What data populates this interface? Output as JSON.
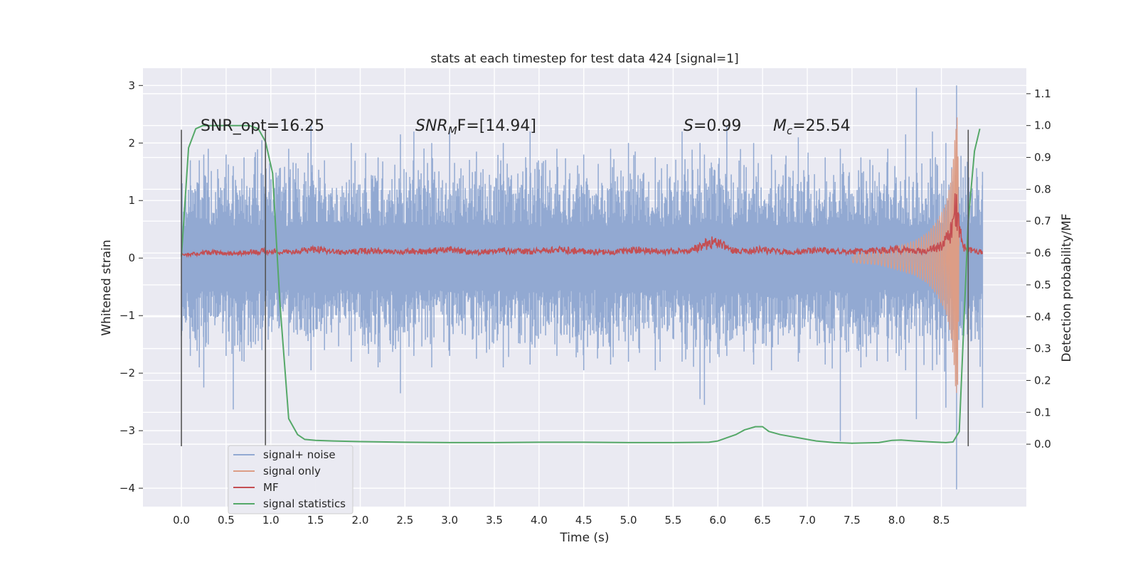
{
  "chart_data": {
    "type": "line",
    "title": "stats at each timestep for test data 424 [signal=1]",
    "xlabel": "Time (s)",
    "ylabel": "Whitened strain",
    "y2label": "Detection probability/MF",
    "xlim": [
      -0.43,
      9.45
    ],
    "ylim": [
      -4.32,
      3.3
    ],
    "y2lim": [
      -0.196,
      1.18
    ],
    "xticks": [
      "0.0",
      "0.5",
      "1.0",
      "1.5",
      "2.0",
      "2.5",
      "3.0",
      "3.5",
      "4.0",
      "4.5",
      "5.0",
      "5.5",
      "6.0",
      "6.5",
      "7.0",
      "7.5",
      "8.0",
      "8.5"
    ],
    "xtick_values": [
      0.0,
      0.5,
      1.0,
      1.5,
      2.0,
      2.5,
      3.0,
      3.5,
      4.0,
      4.5,
      5.0,
      5.5,
      6.0,
      6.5,
      7.0,
      7.5,
      8.0,
      8.5
    ],
    "yticks": [
      "3",
      "2",
      "1",
      "0",
      "−1",
      "−2",
      "−3",
      "−4"
    ],
    "ytick_values": [
      3,
      2,
      1,
      0,
      -1,
      -2,
      -3,
      -4
    ],
    "y2ticks": [
      "1.1",
      "1.0",
      "0.9",
      "0.8",
      "0.7",
      "0.6",
      "0.5",
      "0.4",
      "0.3",
      "0.2",
      "0.1",
      "0.0"
    ],
    "y2tick_values": [
      1.1,
      1.0,
      0.9,
      0.8,
      0.7,
      0.6,
      0.5,
      0.4,
      0.3,
      0.2,
      0.1,
      0.0
    ],
    "annotations": {
      "snr_opt": "SNR_opt=16.25",
      "snr_mf_a": "SNR",
      "snr_mf_sub": "M",
      "snr_mf_b": "F=[14.94]",
      "s_a": "S",
      "s_b": "=0.99",
      "mc_a": "M",
      "mc_sub": "c",
      "mc_b": "=25.54"
    },
    "vlines": [
      {
        "x": 0.0,
        "ymin": -3.27,
        "ymax": 2.23
      },
      {
        "x": 0.94,
        "ymin": -3.27,
        "ymax": 2.23
      },
      {
        "x": 8.8,
        "ymin": -3.27,
        "ymax": 2.23
      }
    ],
    "series": [
      {
        "name": "signal+ noise",
        "color": "#92a9d2",
        "axis": "left",
        "x": [
          0.0,
          0.1,
          0.2,
          0.25,
          0.3,
          0.5,
          0.58,
          0.7,
          0.9,
          1.2,
          1.45,
          1.6,
          1.9,
          2.2,
          2.45,
          2.6,
          2.8,
          3.0,
          3.3,
          3.6,
          3.9,
          4.2,
          4.5,
          4.8,
          5.0,
          5.3,
          5.6,
          5.8,
          5.85,
          6.1,
          6.4,
          6.6,
          6.9,
          7.2,
          7.37,
          7.6,
          7.9,
          8.1,
          8.22,
          8.4,
          8.55,
          8.67,
          8.8,
          8.96
        ],
        "low": [
          -1.35,
          -1.7,
          -1.9,
          -2.25,
          -1.5,
          -1.7,
          -2.63,
          -1.8,
          -1.6,
          -1.7,
          -1.95,
          -1.6,
          -1.8,
          -1.9,
          -2.35,
          -1.7,
          -1.9,
          -1.7,
          -1.75,
          -1.9,
          -1.85,
          -1.7,
          -1.95,
          -1.85,
          -1.8,
          -1.95,
          -1.8,
          -2.45,
          -2.55,
          -1.7,
          -1.85,
          -1.95,
          -1.8,
          -1.85,
          -3.18,
          -1.9,
          -1.8,
          -1.95,
          -2.8,
          -1.95,
          -2.6,
          -4.02,
          -1.8,
          -2.6
        ],
        "high": [
          1.45,
          1.7,
          1.7,
          1.8,
          1.9,
          1.8,
          1.6,
          1.75,
          2.05,
          1.9,
          2.3,
          1.7,
          2.0,
          1.75,
          2.15,
          2.2,
          2.0,
          2.2,
          1.85,
          2.0,
          2.2,
          1.9,
          1.8,
          1.9,
          2.0,
          1.75,
          2.2,
          2.0,
          1.8,
          2.3,
          2.0,
          1.8,
          2.1,
          1.75,
          1.9,
          1.75,
          1.9,
          2.15,
          2.96,
          2.2,
          2.0,
          3.0,
          2.1,
          1.5
        ]
      },
      {
        "name": "signal only",
        "color": "#dc9d86",
        "axis": "left",
        "x": [
          7.5,
          7.8,
          8.0,
          8.2,
          8.35,
          8.45,
          8.55,
          8.6,
          8.63,
          8.66,
          8.68,
          8.7
        ],
        "amp": [
          0.08,
          0.12,
          0.2,
          0.3,
          0.45,
          0.65,
          0.95,
          1.3,
          1.7,
          2.3,
          2.55,
          0.3
        ]
      },
      {
        "name": "MF",
        "color": "#c44e52",
        "axis": "left",
        "x": [
          0.0,
          0.3,
          0.6,
          0.9,
          1.2,
          1.5,
          1.8,
          2.1,
          2.4,
          2.7,
          3.0,
          3.3,
          3.6,
          3.9,
          4.2,
          4.5,
          4.8,
          5.1,
          5.4,
          5.7,
          5.93,
          6.2,
          6.5,
          6.8,
          7.1,
          7.4,
          7.7,
          8.0,
          8.3,
          8.5,
          8.6,
          8.66,
          8.7,
          8.75,
          8.85,
          8.96
        ],
        "y": [
          0.05,
          0.1,
          0.08,
          0.12,
          0.1,
          0.15,
          0.09,
          0.13,
          0.1,
          0.12,
          0.14,
          0.1,
          0.13,
          0.11,
          0.15,
          0.12,
          0.1,
          0.14,
          0.11,
          0.13,
          0.28,
          0.12,
          0.14,
          0.1,
          0.13,
          0.11,
          0.12,
          0.15,
          0.12,
          0.2,
          0.4,
          0.95,
          0.45,
          0.2,
          0.12,
          0.1
        ]
      },
      {
        "name": "signal statistics",
        "color": "#55a868",
        "axis": "right",
        "x": [
          0.0,
          0.08,
          0.16,
          0.24,
          0.4,
          0.6,
          0.76,
          0.86,
          0.94,
          1.02,
          1.1,
          1.2,
          1.3,
          1.38,
          1.5,
          1.7,
          2.0,
          2.5,
          3.0,
          3.5,
          4.0,
          4.5,
          5.0,
          5.5,
          5.9,
          6.0,
          6.1,
          6.2,
          6.3,
          6.42,
          6.5,
          6.57,
          6.7,
          6.9,
          7.1,
          7.3,
          7.5,
          7.8,
          7.95,
          8.05,
          8.2,
          8.4,
          8.55,
          8.63,
          8.7,
          8.8,
          8.87,
          8.93
        ],
        "y": [
          0.59,
          0.93,
          0.99,
          1.0,
          1.0,
          1.0,
          1.0,
          0.99,
          0.95,
          0.85,
          0.45,
          0.08,
          0.03,
          0.015,
          0.012,
          0.01,
          0.008,
          0.006,
          0.005,
          0.005,
          0.006,
          0.006,
          0.005,
          0.005,
          0.006,
          0.01,
          0.02,
          0.03,
          0.045,
          0.055,
          0.055,
          0.04,
          0.03,
          0.02,
          0.01,
          0.005,
          0.003,
          0.005,
          0.012,
          0.013,
          0.01,
          0.007,
          0.005,
          0.007,
          0.04,
          0.7,
          0.92,
          0.99
        ]
      }
    ],
    "legend": {
      "placement": "lower-left",
      "entries": [
        "signal+ noise",
        "signal only",
        "MF",
        "signal statistics"
      ]
    }
  }
}
